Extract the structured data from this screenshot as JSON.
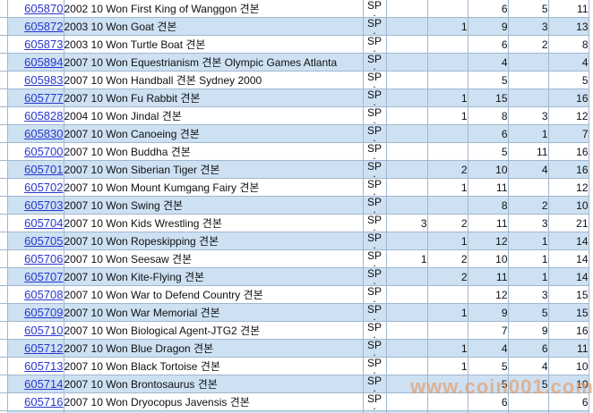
{
  "watermark": "www.coin001.com",
  "table": {
    "sp_line1": "SP",
    "sp_line2": ".",
    "rows": [
      {
        "id": "605870",
        "desc": "2002 10 Won First King of Wanggon 견본",
        "c1": "",
        "c2": "",
        "c3": "6",
        "c4": "5",
        "total": "11"
      },
      {
        "id": "605872",
        "desc": "2003 10 Won Goat 견본",
        "c1": "",
        "c2": "1",
        "c3": "9",
        "c4": "3",
        "total": "13"
      },
      {
        "id": "605873",
        "desc": "2003 10 Won Turtle Boat 견본",
        "c1": "",
        "c2": "",
        "c3": "6",
        "c4": "2",
        "total": "8"
      },
      {
        "id": "605894",
        "desc": "2007 10 Won Equestrianism 견본 Olympic Games Atlanta",
        "c1": "",
        "c2": "",
        "c3": "4",
        "c4": "",
        "total": "4"
      },
      {
        "id": "605983",
        "desc": "2007 10 Won Handball 견본 Sydney 2000",
        "c1": "",
        "c2": "",
        "c3": "5",
        "c4": "",
        "total": "5"
      },
      {
        "id": "605777",
        "desc": "2007 10 Won Fu Rabbit 견본",
        "c1": "",
        "c2": "1",
        "c3": "15",
        "c4": "",
        "total": "16"
      },
      {
        "id": "605828",
        "desc": "2004 10 Won Jindal 견본",
        "c1": "",
        "c2": "1",
        "c3": "8",
        "c4": "3",
        "total": "12"
      },
      {
        "id": "605830",
        "desc": "2007 10 Won Canoeing 견본",
        "c1": "",
        "c2": "",
        "c3": "6",
        "c4": "1",
        "total": "7"
      },
      {
        "id": "605700",
        "desc": "2007 10 Won Buddha 견본",
        "c1": "",
        "c2": "",
        "c3": "5",
        "c4": "11",
        "total": "16"
      },
      {
        "id": "605701",
        "desc": "2007 10 Won Siberian Tiger 견본",
        "c1": "",
        "c2": "2",
        "c3": "10",
        "c4": "4",
        "total": "16"
      },
      {
        "id": "605702",
        "desc": "2007 10 Won Mount Kumgang Fairy 견본",
        "c1": "",
        "c2": "1",
        "c3": "11",
        "c4": "",
        "total": "12"
      },
      {
        "id": "605703",
        "desc": "2007 10 Won Swing 견본",
        "c1": "",
        "c2": "",
        "c3": "8",
        "c4": "2",
        "total": "10"
      },
      {
        "id": "605704",
        "desc": "2007 10 Won Kids Wrestling 견본",
        "c1": "3",
        "c2": "2",
        "c3": "11",
        "c4": "3",
        "total": "21"
      },
      {
        "id": "605705",
        "desc": "2007 10 Won Ropeskipping 견본",
        "c1": "",
        "c2": "1",
        "c3": "12",
        "c4": "1",
        "total": "14"
      },
      {
        "id": "605706",
        "desc": "2007 10 Won Seesaw 견본",
        "c1": "1",
        "c2": "2",
        "c3": "10",
        "c4": "1",
        "total": "14"
      },
      {
        "id": "605707",
        "desc": "2007 10 Won Kite-Flying 견본",
        "c1": "",
        "c2": "2",
        "c3": "11",
        "c4": "1",
        "total": "14"
      },
      {
        "id": "605708",
        "desc": "2007 10 Won War to Defend Country 견본",
        "c1": "",
        "c2": "",
        "c3": "12",
        "c4": "3",
        "total": "15"
      },
      {
        "id": "605709",
        "desc": "2007 10 Won War Memorial 견본",
        "c1": "",
        "c2": "1",
        "c3": "9",
        "c4": "5",
        "total": "15"
      },
      {
        "id": "605710",
        "desc": "2007 10 Won Biological Agent-JTG2 견본",
        "c1": "",
        "c2": "",
        "c3": "7",
        "c4": "9",
        "total": "16"
      },
      {
        "id": "605712",
        "desc": "2007 10 Won Blue Dragon 견본",
        "c1": "",
        "c2": "1",
        "c3": "4",
        "c4": "6",
        "total": "11"
      },
      {
        "id": "605713",
        "desc": "2007 10 Won Black Tortoise 견본",
        "c1": "",
        "c2": "1",
        "c3": "5",
        "c4": "4",
        "total": "10"
      },
      {
        "id": "605714",
        "desc": "2007 10 Won Brontosaurus 견본",
        "c1": "",
        "c2": "",
        "c3": "5",
        "c4": "5",
        "total": "10"
      },
      {
        "id": "605716",
        "desc": "2007 10 Won Dryocopus Javensis 견본",
        "c1": "",
        "c2": "",
        "c3": "6",
        "c4": "",
        "total": "6"
      }
    ]
  },
  "colors": {
    "row_alt": "#cde1f3",
    "border": "#a0b7cf",
    "link": "#2836cf",
    "number_text": "#3d3d44",
    "watermark": "#e99456"
  }
}
